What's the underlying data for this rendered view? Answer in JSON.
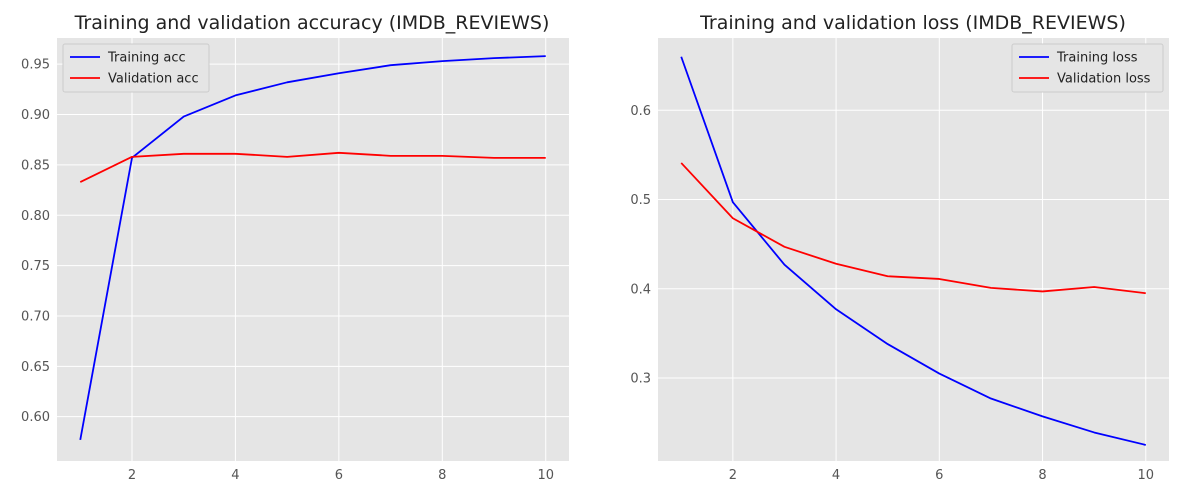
{
  "chart_data": [
    {
      "type": "line",
      "title": "Training and validation accuracy (IMDB_REVIEWS)",
      "xlabel": "",
      "ylabel": "",
      "x": [
        1,
        2,
        3,
        4,
        5,
        6,
        7,
        8,
        9,
        10
      ],
      "xticks": [
        "2",
        "4",
        "6",
        "8",
        "10"
      ],
      "xtick_values": [
        2,
        4,
        6,
        8,
        10
      ],
      "yticks": [
        "0.60",
        "0.65",
        "0.70",
        "0.75",
        "0.80",
        "0.85",
        "0.90",
        "0.95"
      ],
      "ytick_values": [
        0.6,
        0.65,
        0.7,
        0.75,
        0.8,
        0.85,
        0.9,
        0.95
      ],
      "xlim": [
        0.55,
        10.45
      ],
      "ylim": [
        0.556,
        0.976
      ],
      "grid": true,
      "legend_position": "top-left",
      "series": [
        {
          "name": "Training acc",
          "color": "#0000ff",
          "values": [
            0.577,
            0.857,
            0.898,
            0.919,
            0.932,
            0.941,
            0.949,
            0.953,
            0.956,
            0.958
          ]
        },
        {
          "name": "Validation acc",
          "color": "#ff0000",
          "values": [
            0.833,
            0.858,
            0.861,
            0.861,
            0.858,
            0.862,
            0.859,
            0.859,
            0.857,
            0.857
          ]
        }
      ]
    },
    {
      "type": "line",
      "title": "Training and validation loss (IMDB_REVIEWS)",
      "xlabel": "",
      "ylabel": "",
      "x": [
        1,
        2,
        3,
        4,
        5,
        6,
        7,
        8,
        9,
        10
      ],
      "xticks": [
        "2",
        "4",
        "6",
        "8",
        "10"
      ],
      "xtick_values": [
        2,
        4,
        6,
        8,
        10
      ],
      "yticks": [
        "0.3",
        "0.4",
        "0.5",
        "0.6"
      ],
      "ytick_values": [
        0.3,
        0.4,
        0.5,
        0.6
      ],
      "xlim": [
        0.55,
        10.45
      ],
      "ylim": [
        0.207,
        0.681
      ],
      "grid": true,
      "legend_position": "top-right",
      "series": [
        {
          "name": "Training loss",
          "color": "#0000ff",
          "values": [
            0.66,
            0.497,
            0.427,
            0.377,
            0.338,
            0.305,
            0.277,
            0.257,
            0.239,
            0.225
          ]
        },
        {
          "name": "Validation loss",
          "color": "#ff0000",
          "values": [
            0.541,
            0.479,
            0.447,
            0.428,
            0.414,
            0.411,
            0.401,
            0.397,
            0.402,
            0.395
          ]
        }
      ]
    }
  ]
}
